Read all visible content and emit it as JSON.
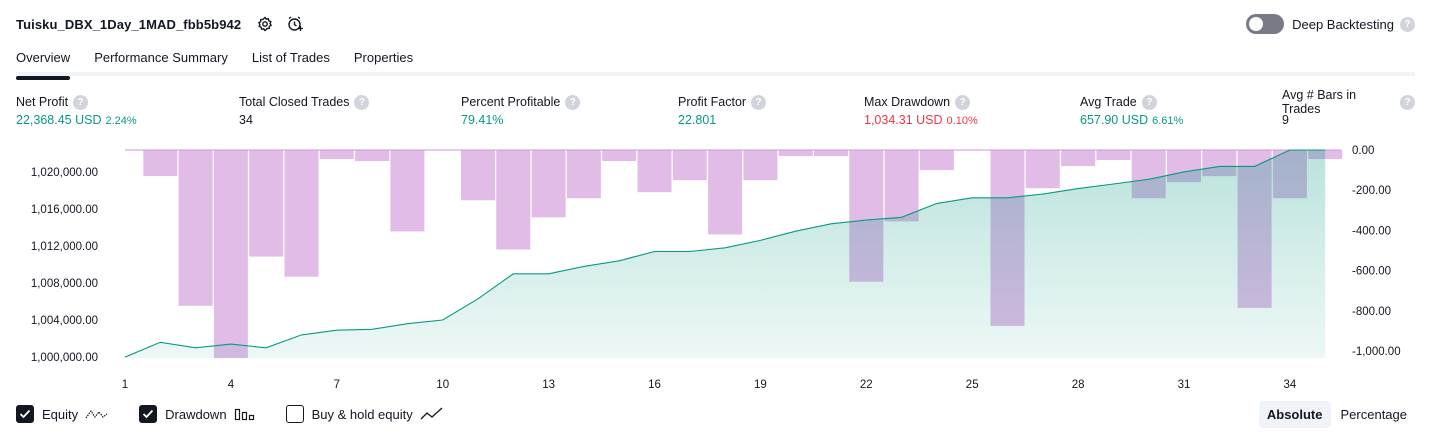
{
  "header": {
    "title": "Tuisku_DBX_1Day_1MAD_fbb5b942",
    "deep_backtesting_label": "Deep Backtesting",
    "deep_backtesting_enabled": false,
    "help_glyph": "?"
  },
  "tabs": [
    {
      "label": "Overview",
      "active": true
    },
    {
      "label": "Performance Summary",
      "active": false
    },
    {
      "label": "List of Trades",
      "active": false
    },
    {
      "label": "Properties",
      "active": false
    }
  ],
  "metrics": [
    {
      "label": "Net Profit",
      "value": "22,368.45 USD",
      "pct": "2.24%",
      "color": "#089981"
    },
    {
      "label": "Total Closed Trades",
      "value": "34",
      "pct": "",
      "color": "#131722"
    },
    {
      "label": "Percent Profitable",
      "value": "79.41%",
      "pct": "",
      "color": "#089981"
    },
    {
      "label": "Profit Factor",
      "value": "22.801",
      "pct": "",
      "color": "#089981"
    },
    {
      "label": "Max Drawdown",
      "value": "1,034.31 USD",
      "pct": "0.10%",
      "color": "#f23645"
    },
    {
      "label": "Avg Trade",
      "value": "657.90 USD",
      "pct": "6.61%",
      "color": "#089981"
    },
    {
      "label": "Avg # Bars in Trades",
      "value": "9",
      "pct": "",
      "color": "#131722"
    }
  ],
  "legend": {
    "equity": {
      "label": "Equity",
      "checked": true
    },
    "drawdown": {
      "label": "Drawdown",
      "checked": true
    },
    "buy_hold": {
      "label": "Buy & hold equity",
      "checked": false
    }
  },
  "mode": {
    "absolute": "Absolute",
    "percentage": "Percentage",
    "selected": "Absolute"
  },
  "chart_data": {
    "type": "area",
    "x_ticks": [
      "1",
      "4",
      "7",
      "10",
      "13",
      "16",
      "19",
      "22",
      "25",
      "28",
      "31",
      "34"
    ],
    "left_axis": {
      "ticks": [
        "1,000,000.00",
        "1,004,000.00",
        "1,008,000.00",
        "1,012,000.00",
        "1,016,000.00",
        "1,020,000.00"
      ],
      "ylim": [
        999900,
        1022368.45
      ]
    },
    "right_axis": {
      "ticks": [
        "0.00",
        "-200.00",
        "-400.00",
        "-600.00",
        "-800.00",
        "-1,000.00"
      ],
      "ylim": [
        -1034.31,
        0
      ]
    },
    "series": [
      {
        "name": "Equity",
        "color": "#089981",
        "x": [
          1,
          2,
          3,
          4,
          5,
          6,
          7,
          8,
          9,
          10,
          11,
          12,
          13,
          14,
          15,
          16,
          17,
          18,
          19,
          20,
          21,
          22,
          23,
          24,
          25,
          26,
          27,
          28,
          29,
          30,
          31,
          32,
          33,
          34,
          35
        ],
        "values": [
          1000000,
          1001600,
          1001000,
          1001400,
          1001000,
          1002400,
          1002900,
          1003000,
          1003600,
          1004000,
          1006300,
          1009000,
          1009000,
          1009800,
          1010400,
          1011400,
          1011400,
          1011800,
          1012600,
          1013600,
          1014400,
          1014800,
          1015100,
          1016600,
          1017200,
          1017200,
          1017600,
          1018200,
          1018700,
          1019200,
          1020000,
          1020600,
          1020600,
          1022368.45,
          1022368.45
        ]
      },
      {
        "name": "Drawdown",
        "color": "#ce93d8",
        "x": [
          1,
          2,
          3,
          4,
          5,
          6,
          7,
          8,
          9,
          10,
          11,
          12,
          13,
          14,
          15,
          16,
          17,
          18,
          19,
          20,
          21,
          22,
          23,
          24,
          25,
          26,
          27,
          28,
          29,
          30,
          31,
          32,
          33,
          34,
          35
        ],
        "values": [
          0,
          -130,
          -775,
          -1034.31,
          -530,
          -630,
          -45,
          -55,
          -405,
          0,
          -250,
          -495,
          -335,
          -240,
          -55,
          -210,
          -150,
          -420,
          -150,
          -30,
          -30,
          -655,
          -355,
          -100,
          0,
          -875,
          -190,
          -80,
          -50,
          -240,
          -160,
          -130,
          -785,
          -240,
          -45
        ]
      }
    ]
  }
}
